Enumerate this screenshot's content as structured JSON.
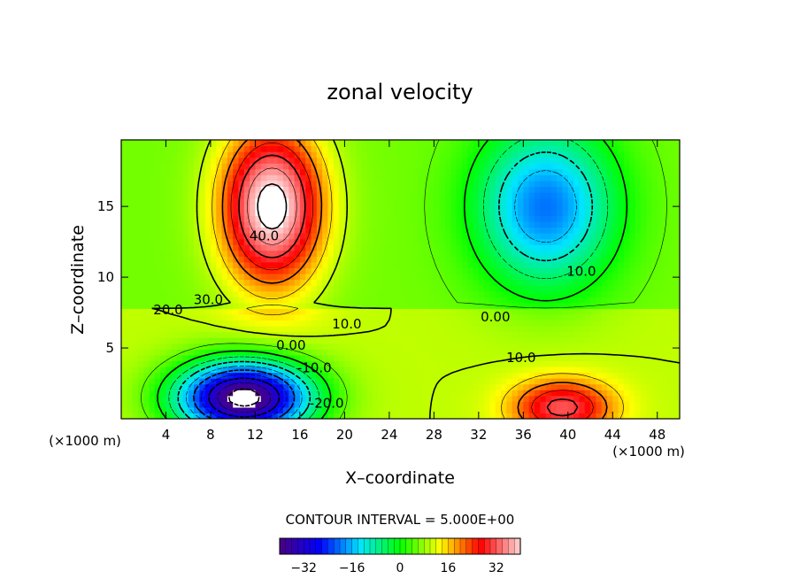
{
  "chart_data": {
    "type": "heatmap",
    "title": "zonal velocity",
    "xlabel": "X–coordinate",
    "ylabel": "Z–coordinate",
    "x_unit_label": "(×1000 m)",
    "x_unit_label_right": "(×1000 m)",
    "xlim": [
      0,
      50
    ],
    "ylim": [
      0,
      19.7
    ],
    "x_ticks": [
      4,
      8,
      12,
      16,
      20,
      24,
      28,
      32,
      36,
      40,
      44,
      48
    ],
    "y_ticks": [
      5,
      10,
      15
    ],
    "contour_interval_text": "CONTOUR INTERVAL = 5.000E+00",
    "colorbar": {
      "range": [
        -40,
        40
      ],
      "ticks": [
        -32,
        -16,
        0,
        16,
        32
      ],
      "colors": [
        "#4b0082",
        "#0000ff",
        "#00e5ff",
        "#00ff00",
        "#ffff00",
        "#ff0000",
        "#ffd6d6"
      ]
    },
    "contour_labels": [
      {
        "text": "40.0",
        "x": 12.8,
        "z": 12.9
      },
      {
        "text": "30.0",
        "x": 7.8,
        "z": 8.4
      },
      {
        "text": "20.0",
        "x": 4.2,
        "z": 7.7
      },
      {
        "text": "10.0",
        "x": 20.2,
        "z": 6.7
      },
      {
        "text": "0.00",
        "x": 15.2,
        "z": 5.2
      },
      {
        "text": "-10.0",
        "x": 17.3,
        "z": 3.6
      },
      {
        "text": "-20.0",
        "x": 18.4,
        "z": 1.1
      },
      {
        "text": "0.00",
        "x": 33.5,
        "z": 7.2
      },
      {
        "text": "10.0",
        "x": 41.2,
        "z": 10.4
      },
      {
        "text": "10.0",
        "x": 35.8,
        "z": 4.3
      }
    ],
    "features": [
      {
        "kind": "jet_maximum",
        "x": 13.5,
        "z": 15.0,
        "value": 45
      },
      {
        "kind": "jet_minimum",
        "x": 11.0,
        "z": 1.5,
        "value": -45
      },
      {
        "kind": "secondary_minimum",
        "x": 38.0,
        "z": 15.0,
        "value": -18
      },
      {
        "kind": "secondary_maximum",
        "x": 39.5,
        "z": 0.8,
        "value": 30
      }
    ]
  }
}
